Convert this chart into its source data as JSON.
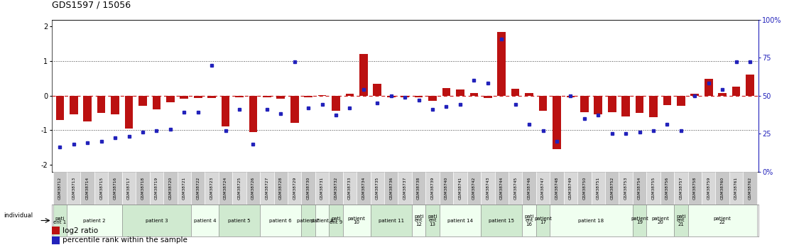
{
  "title": "GDS1597 / 15056",
  "gsm_labels": [
    "GSM38712",
    "GSM38713",
    "GSM38714",
    "GSM38715",
    "GSM38716",
    "GSM38717",
    "GSM38718",
    "GSM38719",
    "GSM38720",
    "GSM38721",
    "GSM38722",
    "GSM38723",
    "GSM38724",
    "GSM38725",
    "GSM38726",
    "GSM38727",
    "GSM38728",
    "GSM38729",
    "GSM38730",
    "GSM38731",
    "GSM38732",
    "GSM38733",
    "GSM38734",
    "GSM38735",
    "GSM38736",
    "GSM38737",
    "GSM38738",
    "GSM38739",
    "GSM38740",
    "GSM38741",
    "GSM38742",
    "GSM38743",
    "GSM38744",
    "GSM38745",
    "GSM38746",
    "GSM38747",
    "GSM38748",
    "GSM38749",
    "GSM38750",
    "GSM38751",
    "GSM38752",
    "GSM38753",
    "GSM38754",
    "GSM38755",
    "GSM38756",
    "GSM38757",
    "GSM38758",
    "GSM38759",
    "GSM38760",
    "GSM38761",
    "GSM38762"
  ],
  "log2_ratio": [
    -0.7,
    -0.55,
    -0.75,
    -0.5,
    -0.55,
    -0.95,
    -0.3,
    -0.4,
    -0.2,
    -0.1,
    -0.08,
    -0.08,
    -0.9,
    -0.05,
    -1.05,
    -0.05,
    -0.1,
    -0.8,
    -0.05,
    0.02,
    -0.45,
    0.05,
    1.2,
    0.35,
    -0.05,
    -0.05,
    -0.05,
    -0.15,
    0.22,
    0.17,
    0.08,
    -0.08,
    1.85,
    0.2,
    0.08,
    -0.45,
    -1.55,
    -0.05,
    -0.48,
    -0.55,
    -0.48,
    -0.6,
    -0.5,
    -0.62,
    -0.28,
    -0.3,
    0.05,
    0.48,
    0.08,
    0.25,
    0.6
  ],
  "percentile": [
    16,
    18,
    19,
    20,
    22,
    23,
    26,
    27,
    28,
    39,
    39,
    70,
    27,
    41,
    18,
    41,
    38,
    72,
    42,
    44,
    37,
    42,
    54,
    45,
    50,
    49,
    47,
    41,
    43,
    44,
    60,
    58,
    87,
    44,
    31,
    27,
    20,
    50,
    35,
    37,
    25,
    25,
    26,
    27,
    31,
    27,
    50,
    58,
    54,
    72,
    72
  ],
  "patients": [
    {
      "label": "pati\nent 1",
      "start": 0,
      "end": 1,
      "color": "#d0ead0"
    },
    {
      "label": "patient 2",
      "start": 1,
      "end": 5,
      "color": "#f0fff0"
    },
    {
      "label": "patient 3",
      "start": 5,
      "end": 10,
      "color": "#d0ead0"
    },
    {
      "label": "patient 4",
      "start": 10,
      "end": 12,
      "color": "#f0fff0"
    },
    {
      "label": "patient 5",
      "start": 12,
      "end": 15,
      "color": "#d0ead0"
    },
    {
      "label": "patient 6",
      "start": 15,
      "end": 18,
      "color": "#f0fff0"
    },
    {
      "label": "patient 7",
      "start": 18,
      "end": 19,
      "color": "#d0ead0"
    },
    {
      "label": "patient 8",
      "start": 19,
      "end": 20,
      "color": "#f0fff0"
    },
    {
      "label": "pati\nent 9",
      "start": 20,
      "end": 21,
      "color": "#d0ead0"
    },
    {
      "label": "patient\n10",
      "start": 21,
      "end": 23,
      "color": "#f0fff0"
    },
    {
      "label": "patient 11",
      "start": 23,
      "end": 26,
      "color": "#d0ead0"
    },
    {
      "label": "pati\nent\n12",
      "start": 26,
      "end": 27,
      "color": "#f0fff0"
    },
    {
      "label": "pati\nent\n13",
      "start": 27,
      "end": 28,
      "color": "#d0ead0"
    },
    {
      "label": "patient 14",
      "start": 28,
      "end": 31,
      "color": "#f0fff0"
    },
    {
      "label": "patient 15",
      "start": 31,
      "end": 34,
      "color": "#d0ead0"
    },
    {
      "label": "pati\nent\n16",
      "start": 34,
      "end": 35,
      "color": "#f0fff0"
    },
    {
      "label": "patient\n17",
      "start": 35,
      "end": 36,
      "color": "#d0ead0"
    },
    {
      "label": "patient 18",
      "start": 36,
      "end": 42,
      "color": "#f0fff0"
    },
    {
      "label": "patient\n19",
      "start": 42,
      "end": 43,
      "color": "#d0ead0"
    },
    {
      "label": "patient\n20",
      "start": 43,
      "end": 45,
      "color": "#f0fff0"
    },
    {
      "label": "pati\nent\n21",
      "start": 45,
      "end": 46,
      "color": "#d0ead0"
    },
    {
      "label": "patient\n22",
      "start": 46,
      "end": 51,
      "color": "#f0fff0"
    }
  ],
  "ylim_left": [
    -2.2,
    2.2
  ],
  "ylim_right": [
    0,
    100
  ],
  "yticks_left": [
    -2,
    -1,
    0,
    1,
    2
  ],
  "yticks_right": [
    0,
    25,
    50,
    75,
    100
  ],
  "yticklabels_right": [
    "0%",
    "25",
    "50",
    "75",
    "100%"
  ],
  "bar_color": "#bb1111",
  "dot_color": "#2222bb",
  "zero_line_color": "#cc2222",
  "hline_color": "#444444",
  "bg_color": "#ffffff"
}
